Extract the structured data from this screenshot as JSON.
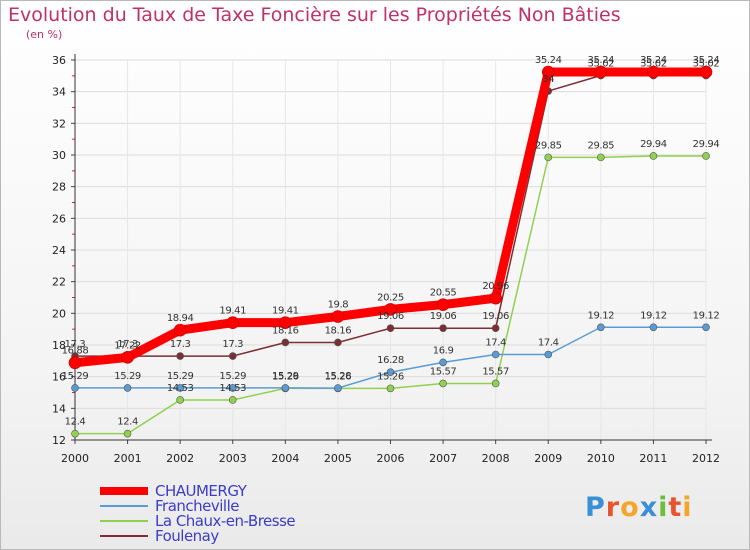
{
  "chart_data": {
    "type": "line",
    "title": "Evolution du Taux de Taxe Foncière sur les Propriétés Non Bâties",
    "ylabel": "(en %)",
    "x": [
      "2000",
      "2001",
      "2002",
      "2003",
      "2004",
      "2005",
      "2006",
      "2007",
      "2008",
      "2009",
      "2010",
      "2011",
      "2012"
    ],
    "ylim": [
      12,
      36
    ],
    "yticks": [
      "12",
      "14",
      "16",
      "18",
      "20",
      "22",
      "24",
      "26",
      "28",
      "30",
      "32",
      "34",
      "36"
    ],
    "series": [
      {
        "name": "CHAUMERGY",
        "color": "#ff0000",
        "values": [
          16.88,
          17.22,
          18.94,
          19.41,
          19.41,
          19.8,
          20.25,
          20.55,
          20.96,
          35.24,
          35.24,
          35.24,
          35.24
        ],
        "labels": [
          "16.88",
          "17.22",
          "18.94",
          "19.41",
          "19.41",
          "19.8",
          "20.25",
          "20.55",
          "20.96",
          "35.24",
          "35.24",
          "35.24",
          "35.24"
        ]
      },
      {
        "name": "Francheville",
        "color": "#5b9bd5",
        "values": [
          15.29,
          15.29,
          15.29,
          15.29,
          15.29,
          15.28,
          16.28,
          16.9,
          17.4,
          17.4,
          19.12,
          19.12,
          19.12
        ],
        "labels": [
          "15.29",
          "15.29",
          "15.29",
          "15.29",
          "15.29",
          "15.28",
          "16.28",
          "16.9",
          "17.4",
          "17.4",
          "19.12",
          "19.12",
          "19.12"
        ]
      },
      {
        "name": "La Chaux-en-Bresse",
        "color": "#92d050",
        "values": [
          12.4,
          12.4,
          14.53,
          14.53,
          15.26,
          15.26,
          15.26,
          15.57,
          15.57,
          29.85,
          29.85,
          29.94,
          29.94
        ],
        "labels": [
          "12.4",
          "12.4",
          "14.53",
          "14.53",
          "15.26",
          "15.26",
          "15.26",
          "15.57",
          "15.57",
          "29.85",
          "29.85",
          "29.94",
          "29.94"
        ]
      },
      {
        "name": "Foulenay",
        "color": "#7b2e35",
        "values": [
          17.3,
          17.3,
          17.3,
          17.3,
          18.16,
          18.16,
          19.06,
          19.06,
          19.06,
          34.04,
          35.02,
          35.02,
          35.02
        ],
        "labels": [
          "17.3",
          "17.3",
          "17.3",
          "17.3",
          "18.16",
          "18.16",
          "19.06",
          "19.06",
          "19.06",
          "34",
          "35.02",
          "35.02",
          "35.02"
        ]
      }
    ]
  },
  "logo": {
    "text": "Proxiti",
    "letters": [
      "P",
      "r",
      "o",
      "x",
      "i",
      "t",
      "i"
    ],
    "colors": [
      "#3a8fd6",
      "#e8542f",
      "#f4a62a",
      "#3a8fd6",
      "#6bbf3a",
      "#e8542f",
      "#f4a62a"
    ]
  }
}
